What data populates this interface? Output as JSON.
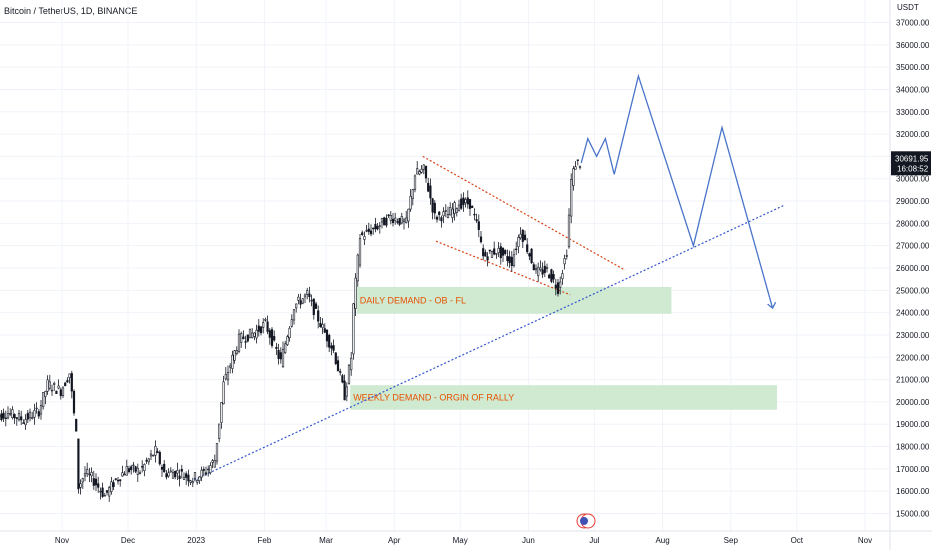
{
  "header": {
    "title": "Bitcoin / TetherUS, 1D, BINANCE"
  },
  "colors": {
    "candle": "#131722",
    "projection": "#4a74c9",
    "trendline": "#3355cc",
    "channel": "#d84315",
    "zone_fill": "#c8e6c9",
    "zone_text": "#e65100",
    "grid": "#f0f3fa",
    "axis": "#e0e3eb"
  },
  "chart_data": {
    "type": "line",
    "title": "Bitcoin / TetherUS, 1D, BINANCE",
    "currency": "USDT",
    "ylim": [
      14700,
      37700
    ],
    "y_ticks": [
      15000,
      16000,
      17000,
      18000,
      19000,
      20000,
      21000,
      22000,
      23000,
      24000,
      25000,
      26000,
      27000,
      28000,
      29000,
      30000,
      31000,
      32000,
      33000,
      34000,
      35000,
      36000,
      37000
    ],
    "x_ticks": [
      "Nov",
      "Dec",
      "2023",
      "Feb",
      "Mar",
      "Apr",
      "May",
      "Jun",
      "Jul",
      "Aug",
      "Sep",
      "Oct",
      "Nov"
    ],
    "last_price": "30691.95",
    "countdown": "16:08:52",
    "grid": true,
    "series": [
      {
        "kind": "price",
        "points": [
          [
            "2022-10-01",
            19300
          ],
          [
            "2022-10-08",
            19500
          ],
          [
            "2022-10-15",
            19200
          ],
          [
            "2022-10-22",
            19600
          ],
          [
            "2022-10-26",
            20800
          ],
          [
            "2022-11-01",
            20500
          ],
          [
            "2022-11-05",
            21300
          ],
          [
            "2022-11-08",
            18500
          ],
          [
            "2022-11-09",
            16200
          ],
          [
            "2022-11-12",
            16800
          ],
          [
            "2022-11-15",
            16600
          ],
          [
            "2022-11-21",
            15800
          ],
          [
            "2022-11-26",
            16500
          ],
          [
            "2022-12-01",
            17000
          ],
          [
            "2022-12-07",
            16900
          ],
          [
            "2022-12-14",
            17800
          ],
          [
            "2022-12-18",
            16800
          ],
          [
            "2022-12-24",
            16850
          ],
          [
            "2022-12-31",
            16550
          ],
          [
            "2023-01-06",
            16900
          ],
          [
            "2023-01-10",
            17400
          ],
          [
            "2023-01-14",
            20800
          ],
          [
            "2023-01-21",
            22800
          ],
          [
            "2023-01-28",
            23100
          ],
          [
            "2023-02-02",
            23500
          ],
          [
            "2023-02-09",
            21800
          ],
          [
            "2023-02-15",
            24300
          ],
          [
            "2023-02-21",
            24800
          ],
          [
            "2023-02-28",
            23300
          ],
          [
            "2023-03-05",
            22300
          ],
          [
            "2023-03-10",
            20300
          ],
          [
            "2023-03-13",
            22000
          ],
          [
            "2023-03-14",
            24300
          ],
          [
            "2023-03-17",
            27400
          ],
          [
            "2023-03-24",
            27800
          ],
          [
            "2023-03-31",
            28300
          ],
          [
            "2023-04-07",
            28000
          ],
          [
            "2023-04-11",
            30200
          ],
          [
            "2023-04-15",
            30400
          ],
          [
            "2023-04-20",
            28300
          ],
          [
            "2023-04-26",
            28400
          ],
          [
            "2023-05-01",
            28900
          ],
          [
            "2023-05-06",
            28900
          ],
          [
            "2023-05-10",
            27600
          ],
          [
            "2023-05-12",
            26500
          ],
          [
            "2023-05-18",
            26800
          ],
          [
            "2023-05-25",
            26300
          ],
          [
            "2023-05-29",
            27700
          ],
          [
            "2023-06-05",
            25800
          ],
          [
            "2023-06-10",
            25900
          ],
          [
            "2023-06-15",
            25100
          ],
          [
            "2023-06-19",
            26800
          ],
          [
            "2023-06-21",
            29900
          ],
          [
            "2023-06-23",
            30700
          ],
          [
            "2023-06-25",
            30691.95
          ]
        ]
      },
      {
        "kind": "projection",
        "points": [
          [
            "2023-06-25",
            30700
          ],
          [
            "2023-06-28",
            31800
          ],
          [
            "2023-07-02",
            31000
          ],
          [
            "2023-07-06",
            31800
          ],
          [
            "2023-07-10",
            30200
          ],
          [
            "2023-07-21",
            34600
          ],
          [
            "2023-08-15",
            27000
          ],
          [
            "2023-08-28",
            32300
          ],
          [
            "2023-09-20",
            24200
          ]
        ]
      }
    ],
    "trendline": {
      "from": [
        "2022-12-31",
        16500
      ],
      "to": [
        "2023-09-25",
        28800
      ]
    },
    "channel": [
      {
        "from": [
          "2023-04-14",
          31000
        ],
        "to": [
          "2023-07-15",
          25900
        ]
      },
      {
        "from": [
          "2023-04-20",
          27200
        ],
        "to": [
          "2023-06-20",
          24800
        ]
      }
    ],
    "annotations": [
      {
        "text": "DAILY DEMAND - OB - FL",
        "x0": "2023-03-15",
        "x1": "2023-08-05",
        "y0": 23950,
        "y1": 25150
      },
      {
        "text": "WEEKLY DEMAND - ORGIN OF RALLY",
        "x0": "2023-03-12",
        "x1": "2023-09-22",
        "y0": 19650,
        "y1": 20750
      }
    ]
  }
}
